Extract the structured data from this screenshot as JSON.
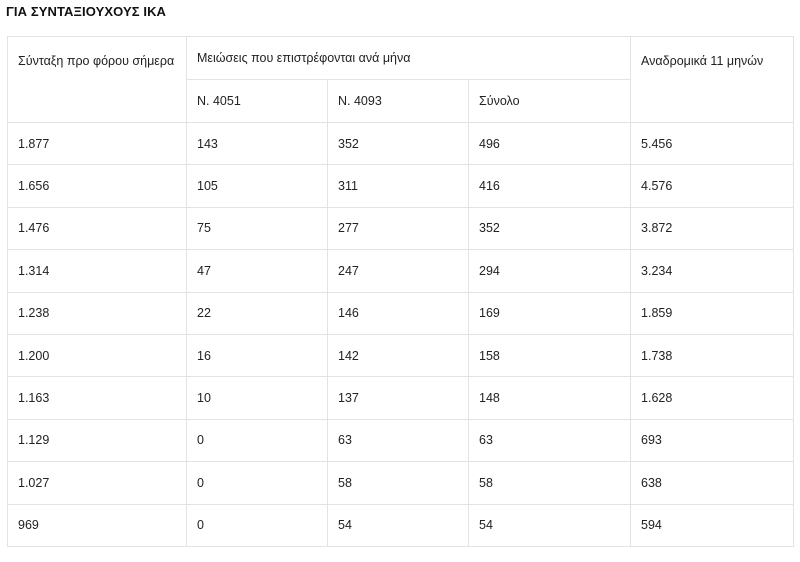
{
  "title": "ΓΙΑ ΣΥΝΤΑΞΙΟΥΧΟΥΣ ΙΚΑ",
  "headers": {
    "pension": "Σύνταξη προ φόρου σήμερα",
    "reductions_group": "Μειώσεις που επιστρέφονται ανά μήνα",
    "law_4051": "Ν. 4051",
    "law_4093": "Ν. 4093",
    "total": "Σύνολο",
    "retro": "Αναδρομικά 11 μηνών"
  },
  "rows": [
    [
      "1.877",
      "143",
      "352",
      "496",
      "5.456"
    ],
    [
      "1.656",
      "105",
      "311",
      "416",
      "4.576"
    ],
    [
      "1.476",
      "75",
      "277",
      "352",
      "3.872"
    ],
    [
      "1.314",
      "47",
      "247",
      "294",
      "3.234"
    ],
    [
      "1.238",
      "22",
      "146",
      "169",
      "1.859"
    ],
    [
      "1.200",
      "16",
      "142",
      "158",
      "1.738"
    ],
    [
      "1.163",
      "10",
      "137",
      "148",
      "1.628"
    ],
    [
      "1.129",
      "0",
      "63",
      "63",
      "693"
    ],
    [
      "1.027",
      "0",
      "58",
      "58",
      "638"
    ],
    [
      "969",
      "0",
      "54",
      "54",
      "594"
    ]
  ]
}
